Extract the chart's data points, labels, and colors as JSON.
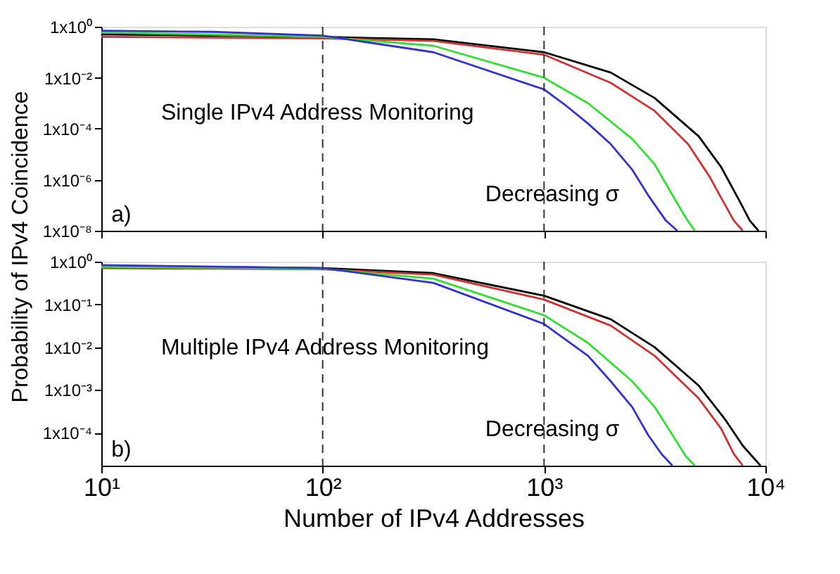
{
  "chart_data": [
    {
      "type": "line",
      "log": "xy",
      "xlim": [
        10,
        10000
      ],
      "ylim": [
        1e-08,
        1
      ],
      "yticks": [
        {
          "value": 1,
          "label": "1x10⁰"
        },
        {
          "value": 0.01,
          "label": "1x10⁻²"
        },
        {
          "value": 0.0001,
          "label": "1x10⁻⁴"
        },
        {
          "value": 1e-06,
          "label": "1x10⁻⁶"
        },
        {
          "value": 1e-08,
          "label": "1x10⁻⁸"
        }
      ],
      "xticks": [
        {
          "value": 10,
          "label": null
        },
        {
          "value": 100,
          "label": null
        },
        {
          "value": 1000,
          "label": null
        },
        {
          "value": 10000,
          "label": null
        }
      ],
      "tick_labels": "y",
      "grid": false,
      "legend": false,
      "marker": "none",
      "line_style": "solid",
      "ylabel": "Probability of IPv4 Coincidence",
      "ref_lines": [
        {
          "axis": "x",
          "value": 100,
          "line_style": "dashed",
          "color": "#333333"
        },
        {
          "axis": "x",
          "value": 1000,
          "line_style": "dashed",
          "color": "#333333"
        }
      ],
      "annotations": [
        "Single IPv4 Address Monitoring",
        "a)",
        "Decreasing σ"
      ],
      "series": [
        {
          "color": "#000000",
          "x": [
            10,
            100,
            316,
            1000,
            2000,
            3160,
            5000,
            6300,
            7600,
            8500,
            9300
          ],
          "values": [
            0.5,
            0.4,
            0.32,
            0.1,
            0.016,
            0.0016,
            5e-05,
            3.2e-06,
            1.6e-07,
            2.5e-08,
            1e-08
          ]
        },
        {
          "color": "#cc3333",
          "x": [
            10,
            100,
            316,
            1000,
            2000,
            3160,
            4470,
            5600,
            6300,
            7200,
            7900
          ],
          "values": [
            0.4,
            0.35,
            0.28,
            0.08,
            0.0063,
            0.0005,
            2.5e-05,
            1.3e-06,
            2e-07,
            2.5e-08,
            1e-08
          ]
        },
        {
          "color": "#33dd33",
          "x": [
            10,
            100,
            316,
            1000,
            1580,
            2500,
            3160,
            3800,
            4370,
            4800
          ],
          "values": [
            0.6,
            0.4,
            0.18,
            0.01,
            0.001,
            4e-05,
            4e-06,
            2.5e-07,
            3.2e-08,
            1e-08
          ]
        },
        {
          "color": "#3333cc",
          "x": [
            10,
            31.6,
            100,
            316,
            1000,
            1260,
            1580,
            2000,
            2500,
            2950,
            3550,
            4000
          ],
          "values": [
            0.7,
            0.63,
            0.45,
            0.1,
            0.0035,
            0.00079,
            0.00016,
            2.5e-05,
            2.5e-06,
            2.5e-07,
            2.5e-08,
            1e-08
          ]
        }
      ]
    },
    {
      "type": "line",
      "log": "xy",
      "xlim": [
        10,
        10000
      ],
      "ylim": [
        1.7e-05,
        1
      ],
      "yticks": [
        {
          "value": 1,
          "label": "1x10⁰"
        },
        {
          "value": 0.1,
          "label": "1x10⁻¹"
        },
        {
          "value": 0.01,
          "label": "1x10⁻²"
        },
        {
          "value": 0.001,
          "label": "1x10⁻³"
        },
        {
          "value": 0.0001,
          "label": "1x10⁻⁴"
        }
      ],
      "xticks": [
        {
          "value": 10,
          "label": "10¹"
        },
        {
          "value": 100,
          "label": "10²"
        },
        {
          "value": 1000,
          "label": "10³"
        },
        {
          "value": 10000,
          "label": "10⁴"
        }
      ],
      "grid": false,
      "legend": false,
      "marker": "none",
      "line_style": "solid",
      "xlabel": "Number of IPv4 Addresses",
      "ref_lines": [
        {
          "axis": "x",
          "value": 100,
          "line_style": "dashed",
          "color": "#333333"
        },
        {
          "axis": "x",
          "value": 1000,
          "line_style": "dashed",
          "color": "#333333"
        }
      ],
      "annotations": [
        "Multiple IPv4 Address Monitoring",
        "b)",
        "Decreasing σ"
      ],
      "series": [
        {
          "color": "#000000",
          "x": [
            10,
            100,
            316,
            1000,
            2000,
            3160,
            5000,
            6600,
            7900,
            9500
          ],
          "values": [
            0.79,
            0.71,
            0.54,
            0.16,
            0.045,
            0.01,
            0.00126,
            0.0002,
            5e-05,
            1.7e-05
          ]
        },
        {
          "color": "#cc3333",
          "x": [
            10,
            100,
            316,
            1000,
            2000,
            3160,
            5000,
            6300,
            7200,
            7900
          ],
          "values": [
            0.71,
            0.66,
            0.5,
            0.13,
            0.032,
            0.0063,
            0.00063,
            0.000126,
            3.2e-05,
            1.7e-05
          ]
        },
        {
          "color": "#33dd33",
          "x": [
            10,
            100,
            316,
            1000,
            1580,
            2500,
            3160,
            3800,
            4370,
            4800
          ],
          "values": [
            0.76,
            0.68,
            0.4,
            0.056,
            0.0126,
            0.0016,
            0.0004,
            8.9e-05,
            2.8e-05,
            1.7e-05
          ]
        },
        {
          "color": "#3333cc",
          "x": [
            10,
            100,
            316,
            1000,
            1580,
            2000,
            2500,
            2950,
            3390,
            3800
          ],
          "values": [
            0.83,
            0.71,
            0.32,
            0.035,
            0.0063,
            0.0016,
            0.0004,
            8.9e-05,
            3.2e-05,
            1.7e-05
          ]
        }
      ]
    }
  ]
}
